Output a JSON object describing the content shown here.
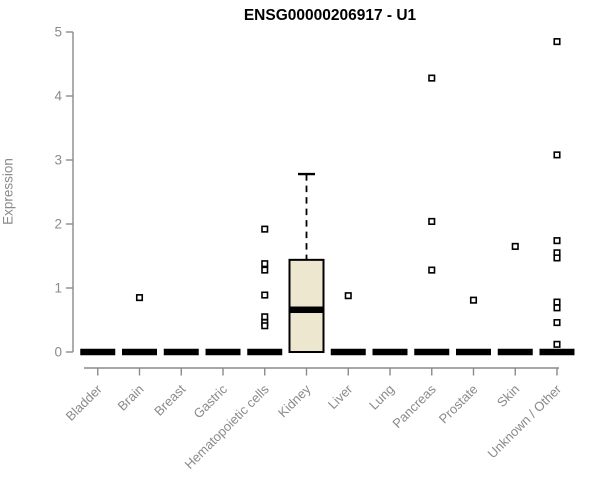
{
  "chart_data": {
    "type": "boxplot",
    "title": "ENSG00000206917 - U1",
    "ylabel": "Expression",
    "xlabel": "",
    "ylim": [
      0,
      5
    ],
    "yticks": [
      0,
      1,
      2,
      3,
      4,
      5
    ],
    "grid": false,
    "legend": false,
    "colors": {
      "box_fill": "#EDE7D0",
      "box_stroke": "#000000",
      "axis": "#8a8a8a",
      "tick_label": "#8a8a8a",
      "title": "#000000"
    },
    "categories": [
      {
        "label": "Bladder",
        "q1": 0,
        "median": 0,
        "q3": 0,
        "whisker_low": 0,
        "whisker_high": 0,
        "outliers": []
      },
      {
        "label": "Brain",
        "q1": 0,
        "median": 0,
        "q3": 0,
        "whisker_low": 0,
        "whisker_high": 0,
        "outliers": [
          0.85
        ]
      },
      {
        "label": "Breast",
        "q1": 0,
        "median": 0,
        "q3": 0,
        "whisker_low": 0,
        "whisker_high": 0,
        "outliers": []
      },
      {
        "label": "Gastric",
        "q1": 0,
        "median": 0,
        "q3": 0,
        "whisker_low": 0,
        "whisker_high": 0,
        "outliers": []
      },
      {
        "label": "Hematopoietic cells",
        "q1": 0,
        "median": 0,
        "q3": 0,
        "whisker_low": 0,
        "whisker_high": 0,
        "outliers": [
          1.92,
          1.38,
          1.28,
          0.89,
          0.55,
          0.46,
          0.41
        ]
      },
      {
        "label": "Kidney",
        "q1": 0,
        "median": 0.66,
        "q3": 1.44,
        "whisker_low": 0,
        "whisker_high": 2.78,
        "outliers": []
      },
      {
        "label": "Liver",
        "q1": 0,
        "median": 0,
        "q3": 0,
        "whisker_low": 0,
        "whisker_high": 0,
        "outliers": [
          0.88
        ]
      },
      {
        "label": "Lung",
        "q1": 0,
        "median": 0,
        "q3": 0,
        "whisker_low": 0,
        "whisker_high": 0,
        "outliers": []
      },
      {
        "label": "Pancreas",
        "q1": 0,
        "median": 0,
        "q3": 0,
        "whisker_low": 0,
        "whisker_high": 0,
        "outliers": [
          4.28,
          2.04,
          1.28
        ]
      },
      {
        "label": "Prostate",
        "q1": 0,
        "median": 0,
        "q3": 0,
        "whisker_low": 0,
        "whisker_high": 0,
        "outliers": [
          0.81
        ]
      },
      {
        "label": "Skin",
        "q1": 0,
        "median": 0,
        "q3": 0,
        "whisker_low": 0,
        "whisker_high": 0,
        "outliers": [
          1.65
        ]
      },
      {
        "label": "Unknown / Other",
        "q1": 0,
        "median": 0,
        "q3": 0,
        "whisker_low": 0,
        "whisker_high": 0,
        "outliers": [
          4.85,
          3.08,
          1.74,
          1.55,
          1.47,
          0.78,
          0.69,
          0.46,
          0.12
        ]
      }
    ]
  }
}
